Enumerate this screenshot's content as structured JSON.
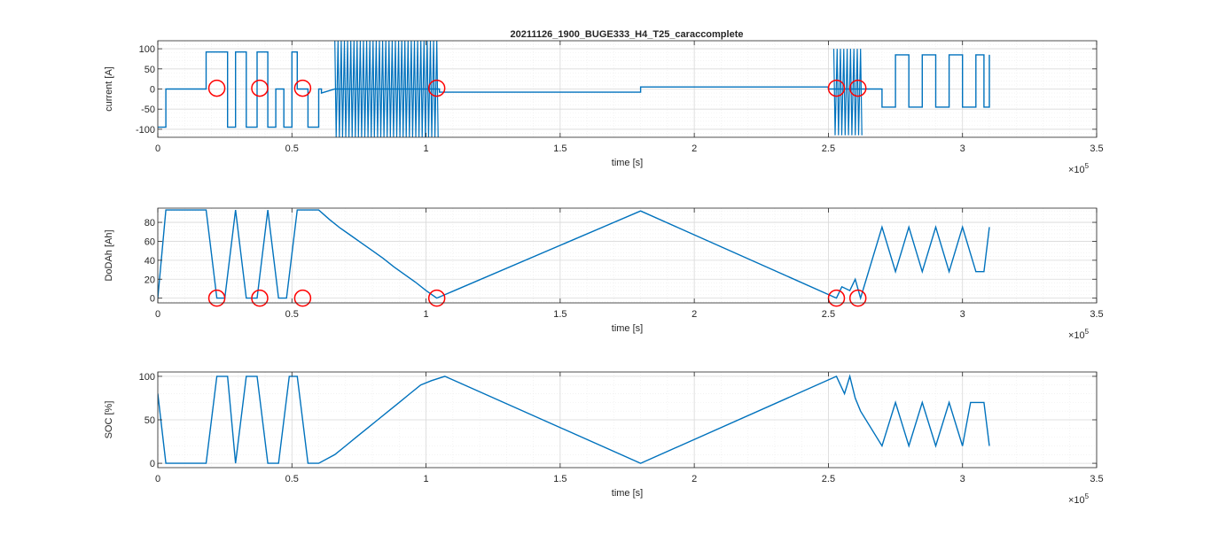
{
  "figure": {
    "title": "20211126_1900_BUGE333_H4_T25_caraccomplete"
  },
  "colors": {
    "line": "#0072BD",
    "marker": "#FF0000",
    "axis": "#262626",
    "grid_major": "#d9d9d9",
    "grid_minor": "#ececec"
  },
  "chart_data": [
    {
      "type": "line",
      "title": "20211126_1900_BUGE333_H4_T25_caraccomplete",
      "xlabel": "time [s]",
      "ylabel": "current [A]",
      "x_exponent": "×10",
      "x_exponent_power": "5",
      "xlim": [
        0,
        3.5
      ],
      "ylim": [
        -120,
        120
      ],
      "xticks": [
        0,
        0.5,
        1,
        1.5,
        2,
        2.5,
        3,
        3.5
      ],
      "xtick_labels": [
        "0",
        "0.5",
        "1",
        "1.5",
        "2",
        "2.5",
        "3",
        "3.5"
      ],
      "yticks": [
        -100,
        -50,
        0,
        50,
        100
      ],
      "ytick_labels": [
        "-100",
        "-50",
        "0",
        "50",
        "100"
      ],
      "grid": true,
      "minor_grid": true,
      "series": [
        {
          "x": [
            0,
            0.03,
            0.03,
            0.05,
            0.05,
            0.18,
            0.18,
            0.26,
            0.26,
            0.29,
            0.29,
            0.33,
            0.33,
            0.37,
            0.37,
            0.41,
            0.41,
            0.44,
            0.44,
            0.47,
            0.47,
            0.5,
            0.5,
            0.52,
            0.52,
            0.56,
            0.56,
            0.6,
            0.6,
            0.61,
            0.61,
            0.66,
            0.66,
            1.05,
            1.05,
            1.8,
            1.8,
            2.5,
            2.5,
            2.7,
            2.7,
            2.75,
            2.75,
            2.8,
            2.8,
            2.85,
            2.85,
            2.9,
            2.9,
            2.95,
            2.95,
            3.0,
            3.0,
            3.05,
            3.05,
            3.08,
            3.08,
            3.1,
            3.1
          ],
          "y": [
            -95,
            -95,
            0,
            0,
            0,
            0,
            92,
            92,
            -95,
            -95,
            92,
            92,
            -95,
            -95,
            92,
            92,
            -95,
            -95,
            0,
            0,
            -95,
            -95,
            92,
            92,
            0,
            0,
            -95,
            -95,
            0,
            0,
            -10,
            0,
            0,
            0,
            -8,
            -8,
            5,
            5,
            0,
            0,
            -45,
            -45,
            85,
            85,
            -45,
            -45,
            85,
            85,
            -45,
            -45,
            85,
            85,
            -45,
            -45,
            85,
            85,
            -45,
            -45,
            85
          ]
        }
      ],
      "bursts": [
        {
          "x_from": 0.66,
          "x_to": 1.04,
          "ymin": -120,
          "ymax": 120
        },
        {
          "x_from": 2.52,
          "x_to": 2.62,
          "ymin": -115,
          "ymax": 100
        }
      ],
      "markers": [
        {
          "x": 0.22,
          "y": 2
        },
        {
          "x": 0.38,
          "y": 2
        },
        {
          "x": 0.54,
          "y": 2
        },
        {
          "x": 1.04,
          "y": 2
        },
        {
          "x": 2.53,
          "y": 2
        },
        {
          "x": 2.61,
          "y": 2
        }
      ]
    },
    {
      "type": "line",
      "xlabel": "time [s]",
      "ylabel": "DoDAh [Ah]",
      "x_exponent": "×10",
      "x_exponent_power": "5",
      "xlim": [
        0,
        3.5
      ],
      "ylim": [
        -5,
        95
      ],
      "xticks": [
        0,
        0.5,
        1,
        1.5,
        2,
        2.5,
        3,
        3.5
      ],
      "xtick_labels": [
        "0",
        "0.5",
        "1",
        "1.5",
        "2",
        "2.5",
        "3",
        "3.5"
      ],
      "yticks": [
        0,
        20,
        40,
        60,
        80
      ],
      "ytick_labels": [
        "0",
        "20",
        "40",
        "60",
        "80"
      ],
      "grid": true,
      "minor_grid": true,
      "series": [
        {
          "x": [
            0,
            0.03,
            0.18,
            0.22,
            0.25,
            0.29,
            0.33,
            0.37,
            0.41,
            0.45,
            0.48,
            0.52,
            0.56,
            0.6,
            0.64,
            0.68,
            0.72,
            0.76,
            0.8,
            0.84,
            0.88,
            0.92,
            0.96,
            1.0,
            1.04,
            1.8,
            2.53,
            2.55,
            2.58,
            2.6,
            2.62,
            2.7,
            2.75,
            2.8,
            2.85,
            2.9,
            2.95,
            3.0,
            3.05,
            3.08,
            3.1
          ],
          "y": [
            0,
            93,
            93,
            0,
            0,
            93,
            0,
            0,
            93,
            0,
            0,
            93,
            93,
            93,
            83,
            74,
            66,
            58,
            50,
            42,
            33,
            25,
            17,
            8,
            0,
            92,
            0,
            12,
            8,
            20,
            0,
            75,
            28,
            75,
            28,
            75,
            28,
            75,
            28,
            28,
            75
          ]
        }
      ],
      "markers": [
        {
          "x": 0.22,
          "y": 0
        },
        {
          "x": 0.38,
          "y": 0
        },
        {
          "x": 0.54,
          "y": 0
        },
        {
          "x": 1.04,
          "y": 0
        },
        {
          "x": 2.53,
          "y": 0
        },
        {
          "x": 2.61,
          "y": 0
        }
      ]
    },
    {
      "type": "line",
      "xlabel": "time [s]",
      "ylabel": "SOC [%]",
      "x_exponent": "×10",
      "x_exponent_power": "5",
      "xlim": [
        0,
        3.5
      ],
      "ylim": [
        -5,
        105
      ],
      "xticks": [
        0,
        0.5,
        1,
        1.5,
        2,
        2.5,
        3,
        3.5
      ],
      "xtick_labels": [
        "0",
        "0.5",
        "1",
        "1.5",
        "2",
        "2.5",
        "3",
        "3.5"
      ],
      "yticks": [
        0,
        50,
        100
      ],
      "ytick_labels": [
        "0",
        "50",
        "100"
      ],
      "grid": true,
      "minor_grid": true,
      "series": [
        {
          "x": [
            0,
            0.03,
            0.18,
            0.22,
            0.26,
            0.29,
            0.33,
            0.37,
            0.41,
            0.45,
            0.49,
            0.52,
            0.56,
            0.6,
            0.66,
            0.7,
            0.74,
            0.78,
            0.82,
            0.86,
            0.9,
            0.94,
            0.98,
            1.02,
            1.07,
            1.8,
            2.53,
            2.56,
            2.58,
            2.6,
            2.62,
            2.7,
            2.75,
            2.8,
            2.85,
            2.9,
            2.95,
            3.0,
            3.03,
            3.08,
            3.1
          ],
          "y": [
            80,
            0,
            0,
            100,
            100,
            0,
            100,
            100,
            0,
            0,
            100,
            100,
            0,
            0,
            10,
            20,
            30,
            40,
            50,
            60,
            70,
            80,
            90,
            95,
            100,
            0,
            100,
            80,
            100,
            75,
            60,
            20,
            70,
            20,
            70,
            20,
            70,
            20,
            70,
            70,
            20
          ]
        }
      ],
      "markers": []
    }
  ]
}
